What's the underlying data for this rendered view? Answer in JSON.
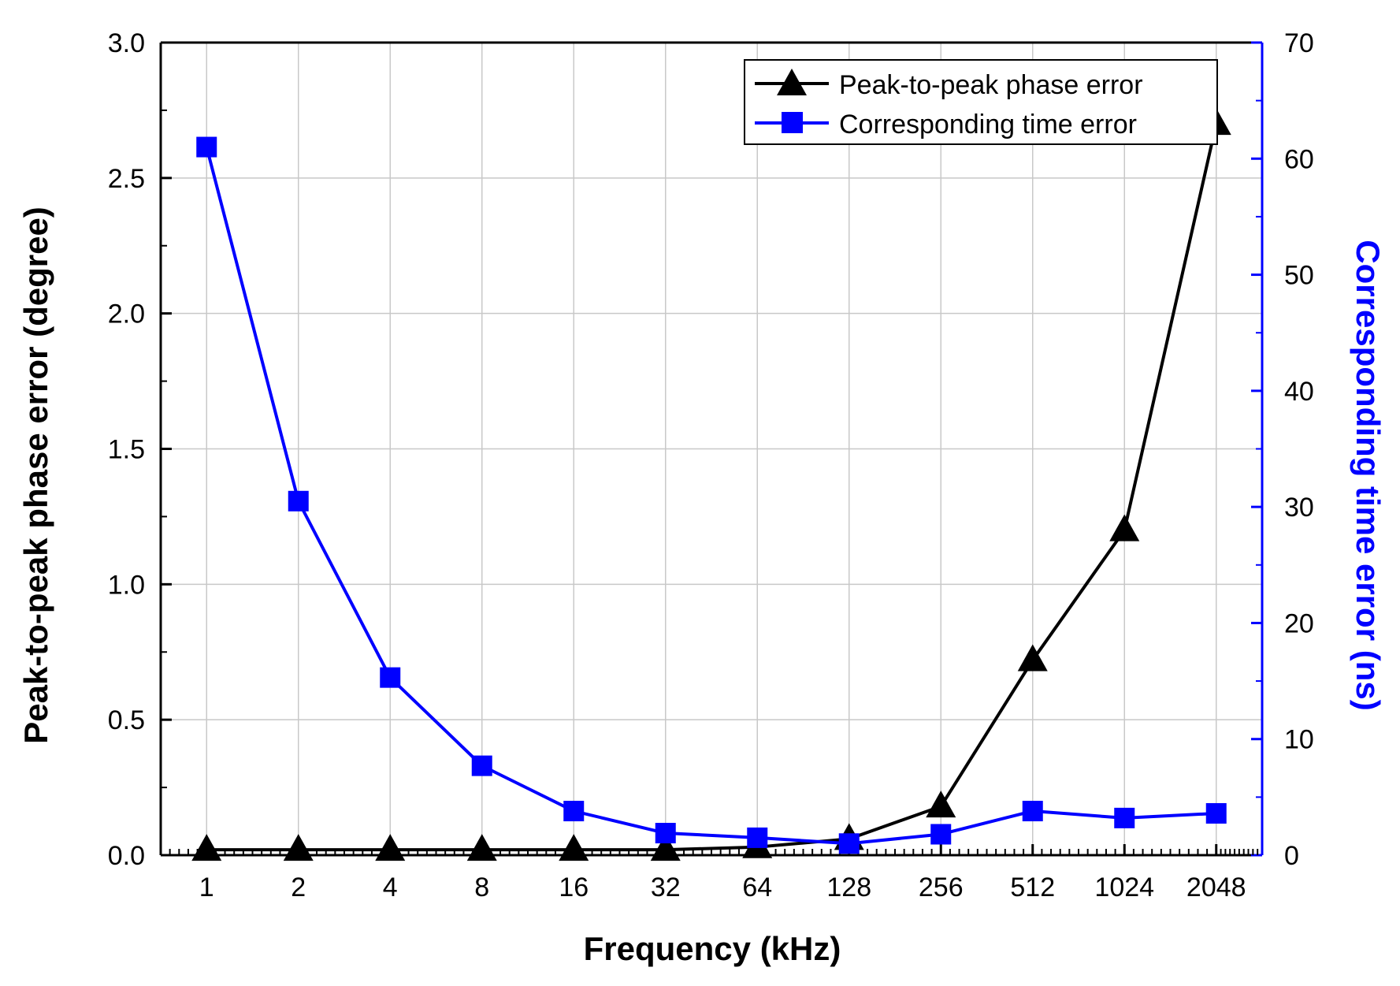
{
  "chart_data": {
    "type": "line",
    "title": "",
    "xlabel": "Frequency (kHz)",
    "ylabel_left": "Peak-to-peak phase error (degree)",
    "ylabel_right": "Corresponding time error (ns)",
    "categories": [
      "1",
      "2",
      "4",
      "8",
      "16",
      "32",
      "64",
      "128",
      "256",
      "512",
      "1024",
      "2048"
    ],
    "y_left": {
      "min": 0,
      "max": 3.0,
      "ticks": [
        "0.0",
        "0.5",
        "1.0",
        "1.5",
        "2.0",
        "2.5",
        "3.0"
      ]
    },
    "y_right": {
      "min": 0,
      "max": 70,
      "ticks": [
        "0",
        "10",
        "20",
        "30",
        "40",
        "50",
        "60",
        "70"
      ]
    },
    "grid": true,
    "legend_position": "top-right",
    "series": [
      {
        "name": "Peak-to-peak phase error",
        "axis": "left",
        "marker": "triangle",
        "color": "#000000",
        "values": [
          0.02,
          0.02,
          0.02,
          0.02,
          0.02,
          0.02,
          0.03,
          0.06,
          0.18,
          0.72,
          1.2,
          2.7
        ]
      },
      {
        "name": "Corresponding time error",
        "axis": "right",
        "marker": "square",
        "color": "#0000ff",
        "values": [
          61.0,
          30.5,
          15.3,
          7.7,
          3.8,
          1.9,
          1.5,
          1.0,
          1.8,
          3.8,
          3.2,
          3.6
        ]
      }
    ]
  }
}
